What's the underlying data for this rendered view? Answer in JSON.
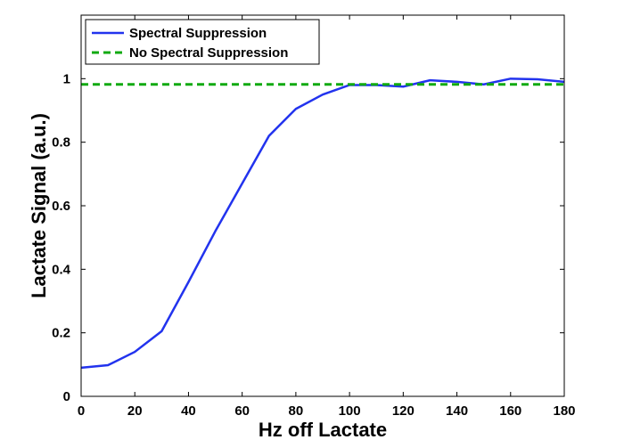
{
  "chart_data": {
    "type": "line",
    "title": "",
    "xlabel": "Hz off Lactate",
    "ylabel": "Lactate Signal (a.u.)",
    "xlim": [
      0,
      180
    ],
    "ylim": [
      0,
      1.2
    ],
    "xticks": [
      0,
      20,
      40,
      60,
      80,
      100,
      120,
      140,
      160,
      180
    ],
    "yticks": [
      0,
      0.2,
      0.4,
      0.6,
      0.8,
      1
    ],
    "ytick_labels": [
      "0",
      "0.2",
      "0.4",
      "0.6",
      "0.8",
      "1"
    ],
    "grid": false,
    "legend_position": "top-left",
    "series": [
      {
        "name": "Spectral Suppression",
        "color": "#2233ee",
        "style": "solid",
        "x": [
          0,
          10,
          20,
          30,
          40,
          50,
          60,
          70,
          80,
          90,
          100,
          110,
          120,
          130,
          140,
          150,
          160,
          170,
          180
        ],
        "values": [
          0.09,
          0.098,
          0.14,
          0.205,
          0.36,
          0.52,
          0.67,
          0.82,
          0.905,
          0.95,
          0.98,
          0.98,
          0.975,
          0.995,
          0.99,
          0.982,
          1.0,
          0.998,
          0.99
        ]
      },
      {
        "name": "No Spectral Suppression",
        "color": "#11aa11",
        "style": "dashed",
        "x": [
          0,
          180
        ],
        "values": [
          0.982,
          0.982
        ]
      }
    ]
  }
}
